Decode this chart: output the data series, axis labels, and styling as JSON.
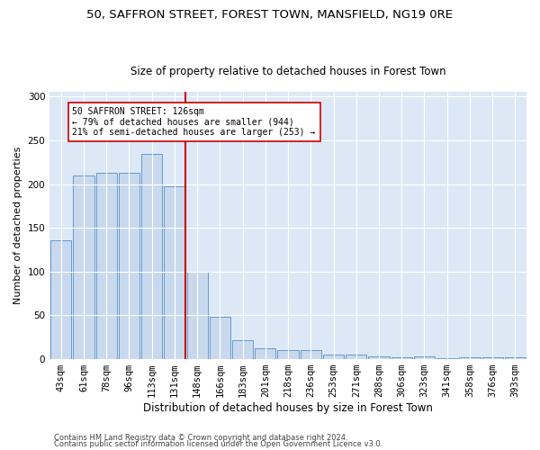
{
  "title1": "50, SAFFRON STREET, FOREST TOWN, MANSFIELD, NG19 0RE",
  "title2": "Size of property relative to detached houses in Forest Town",
  "xlabel": "Distribution of detached houses by size in Forest Town",
  "ylabel": "Number of detached properties",
  "categories": [
    "43sqm",
    "61sqm",
    "78sqm",
    "96sqm",
    "113sqm",
    "131sqm",
    "148sqm",
    "166sqm",
    "183sqm",
    "201sqm",
    "218sqm",
    "236sqm",
    "253sqm",
    "271sqm",
    "288sqm",
    "306sqm",
    "323sqm",
    "341sqm",
    "358sqm",
    "376sqm",
    "393sqm"
  ],
  "values": [
    136,
    210,
    213,
    213,
    235,
    197,
    100,
    48,
    22,
    12,
    10,
    10,
    5,
    5,
    3,
    2,
    3,
    1,
    2,
    2,
    2
  ],
  "bar_color": "#c8d9ee",
  "bar_edge_color": "#6699cc",
  "vline_color": "#cc0000",
  "annotation_text": "50 SAFFRON STREET: 126sqm\n← 79% of detached houses are smaller (944)\n21% of semi-detached houses are larger (253) →",
  "annotation_box_color": "#ffffff",
  "annotation_box_edge": "#cc0000",
  "ylim": [
    0,
    305
  ],
  "yticks": [
    0,
    50,
    100,
    150,
    200,
    250,
    300
  ],
  "bg_color": "#dce8f5",
  "footer1": "Contains HM Land Registry data © Crown copyright and database right 2024.",
  "footer2": "Contains public sector information licensed under the Open Government Licence v3.0.",
  "title1_fontsize": 9.5,
  "title2_fontsize": 8.5,
  "tick_fontsize": 7.5,
  "ylabel_fontsize": 8,
  "xlabel_fontsize": 8.5,
  "footer_fontsize": 6,
  "annot_fontsize": 7
}
